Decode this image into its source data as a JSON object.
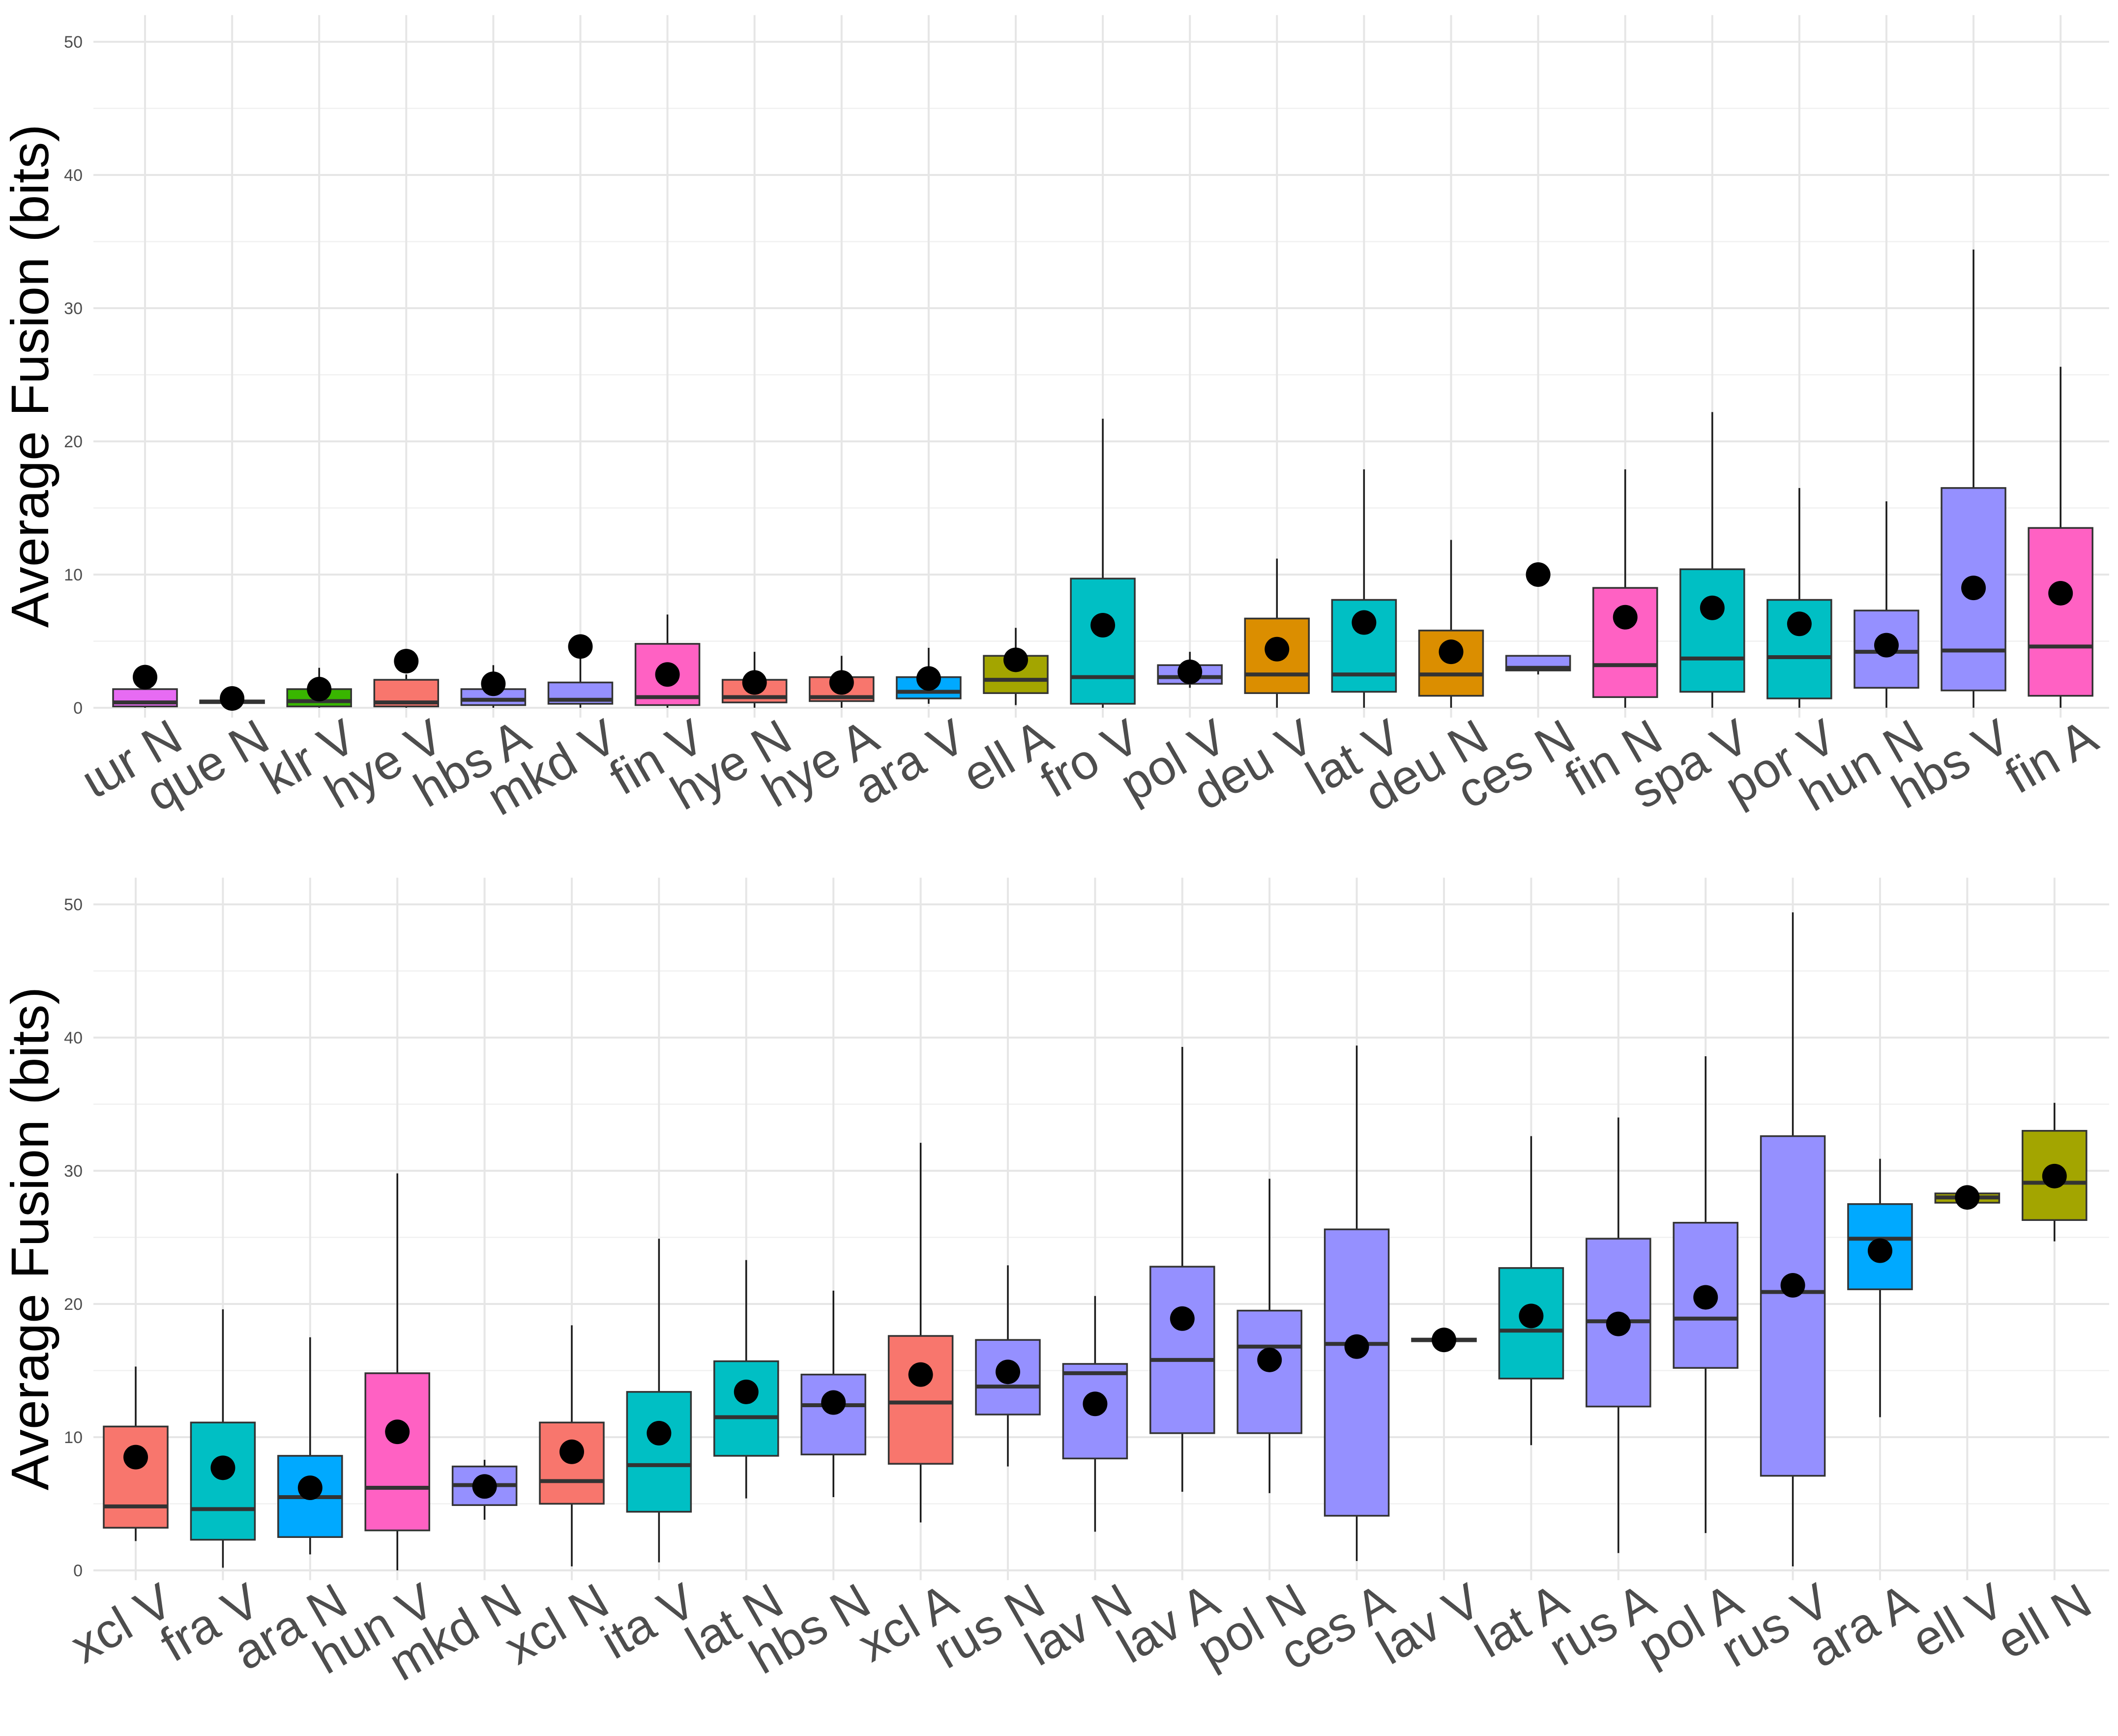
{
  "colors": {
    "A": "#f8766d",
    "B": "#00bfc4",
    "C": "#619cff",
    "D": "#ff61c3",
    "E": "#00a9ff",
    "F": "#9590ff",
    "G": "#a3a500",
    "H": "#db8e00",
    "I": "#39b600",
    "J": "#e76bf3"
  },
  "chart_data": [
    {
      "type": "box",
      "ylabel": "Average Fusion (bits)",
      "ylim": [
        0,
        52
      ],
      "yticks": [
        0,
        10,
        20,
        30,
        40,
        50
      ],
      "grid": true,
      "categories": [
        "ɩur N",
        "que N",
        "klr V",
        "hye V",
        "hbs A",
        "mkd V",
        "fin V",
        "hye N",
        "hye A",
        "ara V",
        "ell A",
        "fro V",
        "pol V",
        "deu V",
        "lat V",
        "deu N",
        "ces N",
        "fin N",
        "spa V",
        "por V",
        "hun N",
        "hbs V",
        "fin A"
      ],
      "boxes": [
        {
          "label": "ɩur N",
          "fill": "J",
          "min": 0.0,
          "q1": 0.1,
          "median": 0.4,
          "q3": 1.4,
          "max": 1.6,
          "mean": 2.3
        },
        {
          "label": "que N",
          "fill": "F",
          "min": 0.3,
          "q1": 0.35,
          "median": 0.45,
          "q3": 0.55,
          "max": 0.6,
          "mean": 0.7
        },
        {
          "label": "klr V",
          "fill": "I",
          "min": 0.0,
          "q1": 0.1,
          "median": 0.5,
          "q3": 1.4,
          "max": 3.0,
          "mean": 1.4
        },
        {
          "label": "hye V",
          "fill": "A",
          "min": 0.0,
          "q1": 0.1,
          "median": 0.4,
          "q3": 2.1,
          "max": 2.5,
          "mean": 3.5
        },
        {
          "label": "hbs A",
          "fill": "F",
          "min": 0.0,
          "q1": 0.2,
          "median": 0.6,
          "q3": 1.4,
          "max": 3.2,
          "mean": 1.8
        },
        {
          "label": "mkd V",
          "fill": "F",
          "min": 0.0,
          "q1": 0.3,
          "median": 0.6,
          "q3": 1.9,
          "max": 4.6,
          "mean": 4.6
        },
        {
          "label": "fin V",
          "fill": "D",
          "min": 0.0,
          "q1": 0.2,
          "median": 0.8,
          "q3": 4.8,
          "max": 7.0,
          "mean": 2.5
        },
        {
          "label": "hye N",
          "fill": "A",
          "min": 0.0,
          "q1": 0.4,
          "median": 0.8,
          "q3": 2.1,
          "max": 4.2,
          "mean": 1.9
        },
        {
          "label": "hye A",
          "fill": "A",
          "min": 0.0,
          "q1": 0.5,
          "median": 0.8,
          "q3": 2.3,
          "max": 3.9,
          "mean": 1.9
        },
        {
          "label": "ara V",
          "fill": "E",
          "min": 0.3,
          "q1": 0.7,
          "median": 1.2,
          "q3": 2.3,
          "max": 4.5,
          "mean": 2.2
        },
        {
          "label": "ell A",
          "fill": "G",
          "min": 0.2,
          "q1": 1.1,
          "median": 2.1,
          "q3": 3.9,
          "max": 6.0,
          "mean": 3.6
        },
        {
          "label": "fro V",
          "fill": "B",
          "min": 0.0,
          "q1": 0.3,
          "median": 2.3,
          "q3": 9.7,
          "max": 21.7,
          "mean": 6.2
        },
        {
          "label": "pol V",
          "fill": "F",
          "min": 1.5,
          "q1": 1.8,
          "median": 2.3,
          "q3": 3.2,
          "max": 4.2,
          "mean": 2.7
        },
        {
          "label": "deu V",
          "fill": "H",
          "min": 0.0,
          "q1": 1.1,
          "median": 2.5,
          "q3": 6.7,
          "max": 11.2,
          "mean": 4.4
        },
        {
          "label": "lat V",
          "fill": "B",
          "min": 0.0,
          "q1": 1.2,
          "median": 2.5,
          "q3": 8.1,
          "max": 17.9,
          "mean": 6.4
        },
        {
          "label": "deu N",
          "fill": "H",
          "min": 0.0,
          "q1": 0.9,
          "median": 2.5,
          "q3": 5.8,
          "max": 12.6,
          "mean": 4.2
        },
        {
          "label": "ces N",
          "fill": "F",
          "min": 2.5,
          "q1": 2.8,
          "median": 3.0,
          "q3": 3.9,
          "max": 3.9,
          "mean": 10.0
        },
        {
          "label": "fin N",
          "fill": "D",
          "min": 0.0,
          "q1": 0.8,
          "median": 3.2,
          "q3": 9.0,
          "max": 17.9,
          "mean": 6.8
        },
        {
          "label": "spa V",
          "fill": "B",
          "min": 0.0,
          "q1": 1.2,
          "median": 3.7,
          "q3": 10.4,
          "max": 22.2,
          "mean": 7.5
        },
        {
          "label": "por V",
          "fill": "B",
          "min": 0.0,
          "q1": 0.7,
          "median": 3.8,
          "q3": 8.1,
          "max": 16.5,
          "mean": 6.3
        },
        {
          "label": "hun N",
          "fill": "F",
          "min": 0.0,
          "q1": 1.5,
          "median": 4.2,
          "q3": 7.3,
          "max": 15.5,
          "mean": 4.7
        },
        {
          "label": "hbs V",
          "fill": "F",
          "min": 0.0,
          "q1": 1.3,
          "median": 4.3,
          "q3": 16.5,
          "max": 34.4,
          "mean": 9.0
        },
        {
          "label": "fin A",
          "fill": "D",
          "min": 0.0,
          "q1": 0.9,
          "median": 4.6,
          "q3": 13.5,
          "max": 25.6,
          "mean": 8.6
        }
      ]
    },
    {
      "type": "box",
      "ylabel": "Average Fusion (bits)",
      "ylim": [
        0,
        52
      ],
      "yticks": [
        0,
        10,
        20,
        30,
        40,
        50
      ],
      "grid": true,
      "categories": [
        "xcl V",
        "fra V",
        "ara N",
        "hun V",
        "mkd N",
        "xcl N",
        "ita V",
        "lat N",
        "hbs N",
        "xcl A",
        "rus N",
        "lav N",
        "lav A",
        "pol N",
        "ces A",
        "lav V",
        "lat A",
        "rus A",
        "pol A",
        "rus V",
        "ara A",
        "ell V",
        "ell N"
      ],
      "boxes": [
        {
          "label": "xcl V",
          "fill": "A",
          "min": 2.2,
          "q1": 3.2,
          "median": 4.8,
          "q3": 10.8,
          "max": 15.3,
          "mean": 8.5
        },
        {
          "label": "fra V",
          "fill": "B",
          "min": 0.2,
          "q1": 2.3,
          "median": 4.6,
          "q3": 11.1,
          "max": 19.6,
          "mean": 7.7
        },
        {
          "label": "ara N",
          "fill": "E",
          "min": 1.2,
          "q1": 2.5,
          "median": 5.5,
          "q3": 8.6,
          "max": 17.5,
          "mean": 6.2
        },
        {
          "label": "hun V",
          "fill": "D",
          "min": 0.0,
          "q1": 3.0,
          "median": 6.2,
          "q3": 14.8,
          "max": 29.8,
          "mean": 10.4
        },
        {
          "label": "mkd N",
          "fill": "F",
          "min": 3.8,
          "q1": 4.9,
          "median": 6.4,
          "q3": 7.8,
          "max": 8.3,
          "mean": 6.3
        },
        {
          "label": "xcl N",
          "fill": "A",
          "min": 0.3,
          "q1": 5.0,
          "median": 6.7,
          "q3": 11.1,
          "max": 18.4,
          "mean": 8.9
        },
        {
          "label": "ita V",
          "fill": "B",
          "min": 0.6,
          "q1": 4.4,
          "median": 7.9,
          "q3": 13.4,
          "max": 24.9,
          "mean": 10.3
        },
        {
          "label": "lat N",
          "fill": "B",
          "min": 5.4,
          "q1": 8.6,
          "median": 11.5,
          "q3": 15.7,
          "max": 23.3,
          "mean": 13.4
        },
        {
          "label": "hbs N",
          "fill": "F",
          "min": 5.5,
          "q1": 8.7,
          "median": 12.4,
          "q3": 14.7,
          "max": 21.0,
          "mean": 12.6
        },
        {
          "label": "xcl A",
          "fill": "A",
          "min": 3.6,
          "q1": 8.0,
          "median": 12.6,
          "q3": 17.6,
          "max": 32.1,
          "mean": 14.7
        },
        {
          "label": "rus N",
          "fill": "F",
          "min": 7.8,
          "q1": 11.7,
          "median": 13.8,
          "q3": 17.3,
          "max": 22.9,
          "mean": 14.9
        },
        {
          "label": "lav N",
          "fill": "F",
          "min": 2.9,
          "q1": 8.4,
          "median": 14.8,
          "q3": 15.5,
          "max": 20.6,
          "mean": 12.5
        },
        {
          "label": "lav A",
          "fill": "F",
          "min": 5.9,
          "q1": 10.3,
          "median": 15.8,
          "q3": 22.8,
          "max": 39.3,
          "mean": 18.9
        },
        {
          "label": "pol N",
          "fill": "F",
          "min": 5.8,
          "q1": 10.3,
          "median": 16.8,
          "q3": 19.5,
          "max": 29.4,
          "mean": 15.8
        },
        {
          "label": "ces A",
          "fill": "F",
          "min": 0.7,
          "q1": 4.1,
          "median": 17.0,
          "q3": 25.6,
          "max": 39.4,
          "mean": 16.8
        },
        {
          "label": "lav V",
          "fill": "F",
          "min": 17.2,
          "q1": 17.2,
          "median": 17.3,
          "q3": 17.4,
          "max": 17.4,
          "mean": 17.3
        },
        {
          "label": "lat A",
          "fill": "B",
          "min": 9.4,
          "q1": 14.4,
          "median": 18.0,
          "q3": 22.7,
          "max": 32.6,
          "mean": 19.1
        },
        {
          "label": "rus A",
          "fill": "F",
          "min": 1.3,
          "q1": 12.3,
          "median": 18.7,
          "q3": 24.9,
          "max": 34.0,
          "mean": 18.5
        },
        {
          "label": "pol A",
          "fill": "F",
          "min": 2.8,
          "q1": 15.2,
          "median": 18.9,
          "q3": 26.1,
          "max": 38.6,
          "mean": 20.5
        },
        {
          "label": "rus V",
          "fill": "F",
          "min": 0.3,
          "q1": 7.1,
          "median": 20.9,
          "q3": 32.6,
          "max": 49.4,
          "mean": 21.4
        },
        {
          "label": "ara A",
          "fill": "E",
          "min": 11.5,
          "q1": 21.1,
          "median": 24.9,
          "q3": 27.5,
          "max": 30.9,
          "mean": 24.0
        },
        {
          "label": "ell V",
          "fill": "G",
          "min": 27.6,
          "q1": 27.6,
          "median": 28.0,
          "q3": 28.3,
          "max": 28.3,
          "mean": 28.0
        },
        {
          "label": "ell N",
          "fill": "G",
          "min": 24.7,
          "q1": 26.3,
          "median": 29.1,
          "q3": 33.0,
          "max": 35.1,
          "mean": 29.6
        }
      ]
    }
  ]
}
